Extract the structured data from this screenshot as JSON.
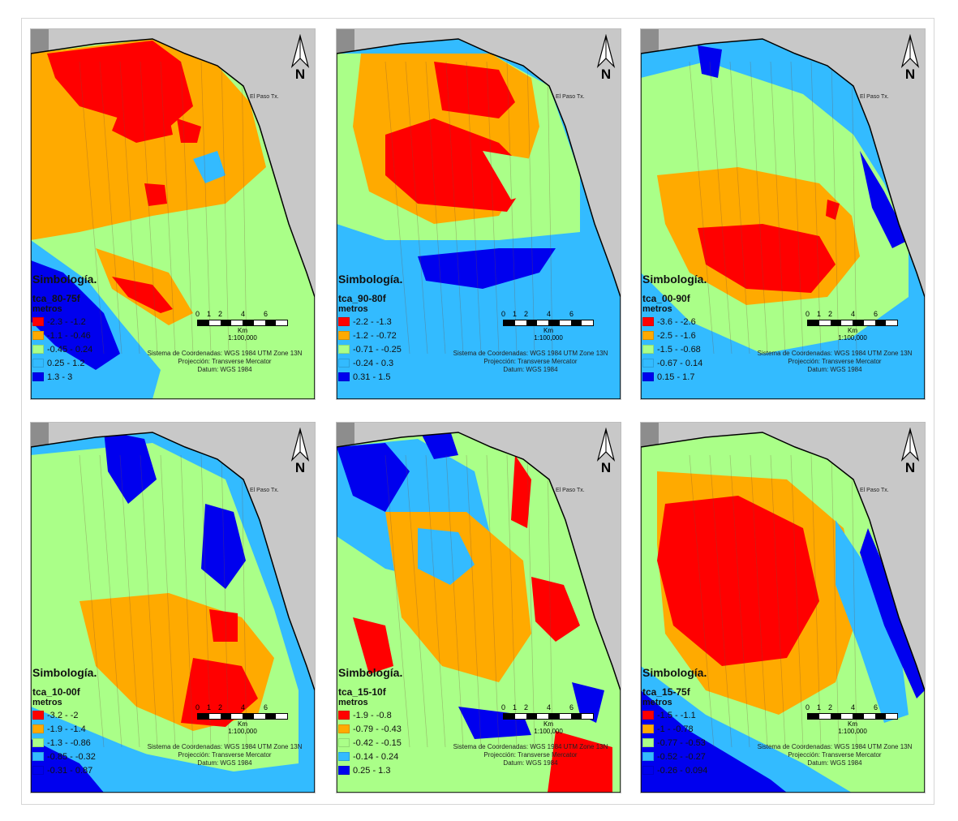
{
  "map_common": {
    "legend_title": "Simbología.",
    "units": "metros",
    "north_label": "N",
    "place_label": "El Paso Tx.",
    "scale_ticks": [
      "0",
      "1",
      "2",
      "4",
      "6"
    ],
    "scale_unit": "Km",
    "scale_ratio": "1:100,000",
    "crs_lines": [
      "Sistema de Coordenadas: WGS 1984 UTM Zone 13N",
      "Projección: Transverse Mercator",
      "Datum: WGS 1984"
    ]
  },
  "class_colors": [
    "#ff0000",
    "#ffaa00",
    "#aaff88",
    "#33bbff",
    "#0000ee"
  ],
  "panels": [
    {
      "layer": "tca_80-75f",
      "classes": [
        "-2.3 - -1.2",
        "-1.1 - -0.46",
        "-0.45 - 0.24",
        "0.25 - 1.2",
        "1.3 - 3"
      ]
    },
    {
      "layer": "tca_90-80f",
      "classes": [
        "-2.2 - -1.3",
        "-1.2 - -0.72",
        "-0.71 - -0.25",
        "-0.24 - 0.3",
        "0.31 - 1.5"
      ]
    },
    {
      "layer": "tca_00-90f",
      "classes": [
        "-3.6 - -2.6",
        "-2.5 - -1.6",
        "-1.5 - -0.68",
        "-0.67 - 0.14",
        "0.15 - 1.7"
      ]
    },
    {
      "layer": "tca_10-00f",
      "classes": [
        "-3.2 - -2",
        "-1.9 - -1.4",
        "-1.3 - -0.86",
        "-0.85 - -0.32",
        "-0.31 - 0.87"
      ]
    },
    {
      "layer": "tca_15-10f",
      "classes": [
        "-1.9 - -0.8",
        "-0.79 - -0.43",
        "-0.42 - -0.15",
        "-0.14 - 0.24",
        "0.25 - 1.3"
      ]
    },
    {
      "layer": "tca_15-75f",
      "classes": [
        "-1.5 - -1.1",
        "-1 - -0.78",
        "-0.77 - -0.53",
        "-0.52 - -0.27",
        "-0.26 - 0.094"
      ]
    }
  ]
}
